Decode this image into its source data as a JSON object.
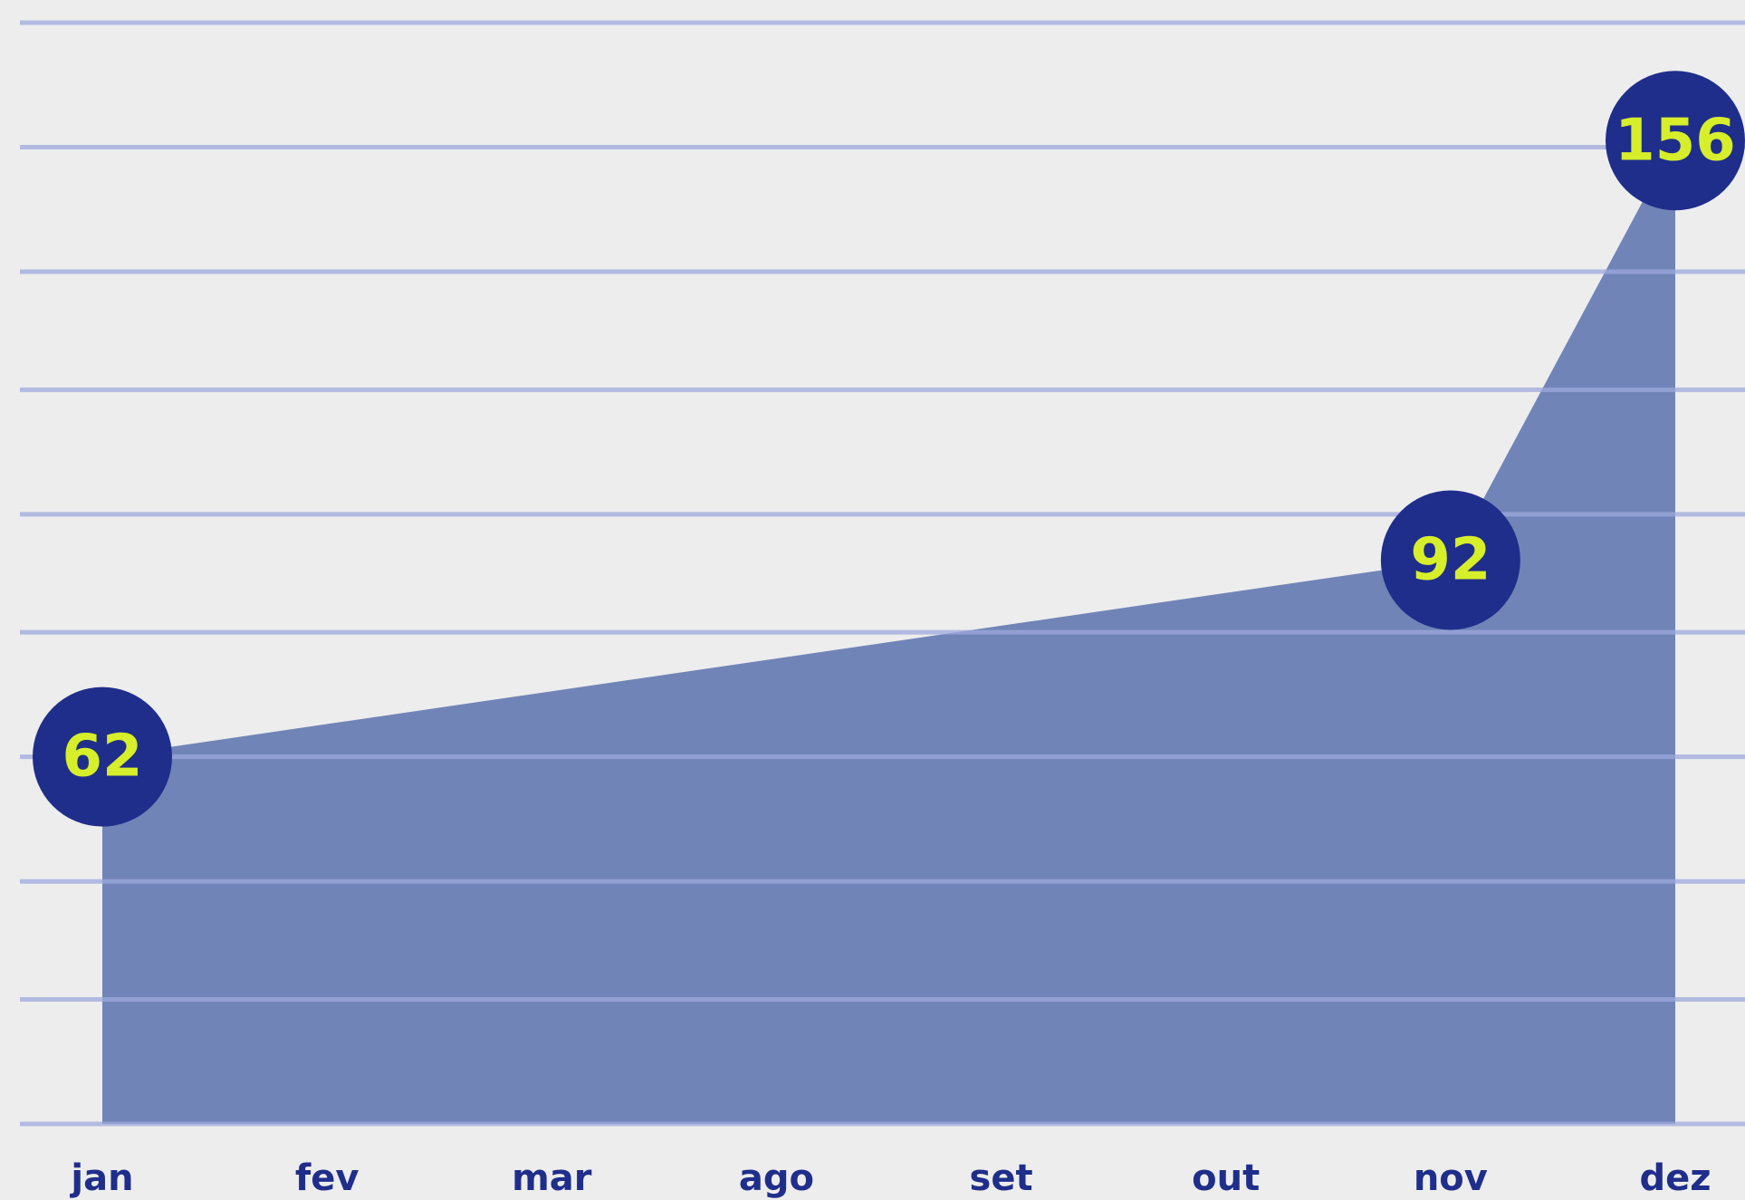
{
  "chart_data": {
    "type": "area",
    "categories": [
      "jan",
      "fev",
      "mar",
      "ago",
      "set",
      "out",
      "nov",
      "dez"
    ],
    "points": {
      "categories": [
        "jan",
        "nov",
        "dez"
      ],
      "values": [
        62,
        92,
        156
      ]
    },
    "ylim": [
      6,
      174
    ],
    "yticks": [
      6,
      25,
      43,
      62,
      81,
      99,
      118,
      136,
      155,
      174
    ],
    "grid": true,
    "color": "#7084b8",
    "marker_color": "#1f2e8a",
    "grid_color": "#9ea8dc"
  }
}
